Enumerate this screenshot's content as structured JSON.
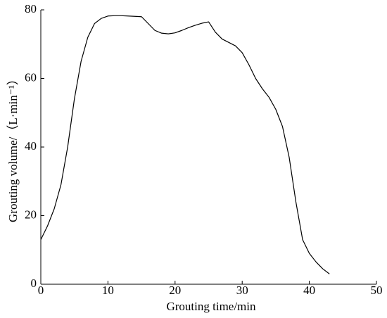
{
  "chart_data": {
    "type": "line",
    "x_label": "Grouting time/min",
    "y_label": "Grouting volume/（L·min⁻¹）",
    "x": [
      0,
      1,
      2,
      3,
      4,
      5,
      6,
      7,
      8,
      9,
      10,
      11,
      12,
      13,
      14,
      15,
      16,
      17,
      18,
      19,
      20,
      21,
      22,
      23,
      24,
      25,
      26,
      27,
      28,
      29,
      30,
      31,
      32,
      33,
      34,
      35,
      36,
      37,
      38,
      39,
      40,
      41,
      42,
      43
    ],
    "series": [
      {
        "color": "#000000",
        "values": [
          13,
          17,
          22,
          29,
          40,
          54,
          65,
          72,
          76,
          77.5,
          78.2,
          78.3,
          78.3,
          78.2,
          78.1,
          78,
          76,
          74,
          73.2,
          73,
          73.3,
          74,
          74.8,
          75.5,
          76.1,
          76.5,
          73.5,
          71.5,
          70.5,
          69.5,
          67.5,
          64,
          60,
          57,
          54.5,
          51,
          46,
          37,
          24,
          13,
          9,
          6.5,
          4.5,
          3
        ]
      }
    ],
    "xlim": [
      0,
      50
    ],
    "ylim": [
      0,
      80
    ],
    "xticks": [
      0,
      10,
      20,
      30,
      40,
      50
    ],
    "yticks": [
      0,
      20,
      40,
      60,
      80
    ]
  }
}
